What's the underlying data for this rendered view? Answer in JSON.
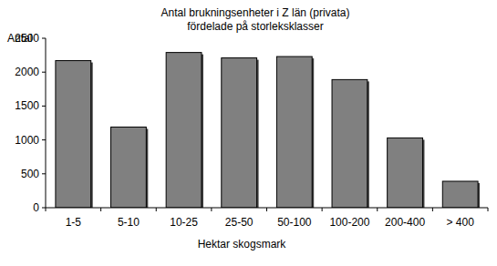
{
  "chart_data": {
    "type": "bar",
    "title": "Antal brukningsenheter i Z län (privata)\nfördelade på storleksklasser",
    "y_label": "Antal",
    "x_label": "Hektar skogsmark",
    "categories": [
      "1-5",
      "5-10",
      "10-25",
      "25-50",
      "50-100",
      "100-200",
      "200-400",
      "> 400"
    ],
    "values": [
      2170,
      1190,
      2290,
      2210,
      2230,
      1890,
      1030,
      390
    ],
    "color": "#808080",
    "ylim": [
      0,
      2500
    ],
    "yticks": [
      0,
      500,
      1000,
      1500,
      2000,
      2500
    ],
    "grid": false
  }
}
